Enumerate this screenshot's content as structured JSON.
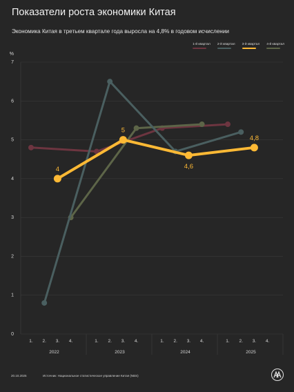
{
  "title": "Показатели роста экономики Китая",
  "subtitle": "Экономика Китая в третьем квартале года выросла на 4,8% в годовом исчислении",
  "footer": {
    "date": "20.10.2025",
    "source": "Источник: Национальное статистическое управление Китая (NBS)",
    "logo_text": "AA"
  },
  "colors": {
    "background": "#262626",
    "q1": "#6d3540",
    "q2": "#4a5f60",
    "q3": "#fdb935",
    "q4": "#5d6548",
    "grid": "#3a3a3a"
  },
  "chart_data": {
    "type": "line",
    "y_unit": "%",
    "ylim": [
      0,
      7
    ],
    "y_ticks": [
      "0",
      "1",
      "2",
      "3",
      "4",
      "5",
      "6",
      "7"
    ],
    "x_groups": [
      {
        "year": "2022",
        "quarters": [
          "1.",
          "2.",
          "3.",
          "4."
        ]
      },
      {
        "year": "2023",
        "quarters": [
          "1.",
          "2.",
          "3.",
          "4."
        ]
      },
      {
        "year": "2024",
        "quarters": [
          "1.",
          "2.",
          "3.",
          "4."
        ]
      },
      {
        "year": "2025",
        "quarters": [
          "1.",
          "2.",
          "3.",
          "4."
        ]
      }
    ],
    "legend_position": "top-right",
    "series": [
      {
        "name": "1-й квартал",
        "color": "#6d3540",
        "quarter": 1,
        "values": [
          4.8,
          4.7,
          5.3,
          5.4
        ],
        "labels": [
          "",
          "",
          "",
          ""
        ]
      },
      {
        "name": "2-й квартал",
        "color": "#4a5f60",
        "quarter": 2,
        "values": [
          0.8,
          6.5,
          4.7,
          5.2
        ],
        "labels": [
          "",
          "",
          "",
          ""
        ]
      },
      {
        "name": "3-й квартал",
        "color": "#fdb935",
        "quarter": 3,
        "values": [
          4.0,
          5.0,
          4.6,
          4.8
        ],
        "labels": [
          "4",
          "5",
          "4,6",
          "4,8"
        ]
      },
      {
        "name": "4-й квартал",
        "color": "#5d6548",
        "quarter": 4,
        "values": [
          3.0,
          5.3,
          5.4
        ],
        "labels": [
          "",
          "",
          ""
        ]
      }
    ]
  }
}
